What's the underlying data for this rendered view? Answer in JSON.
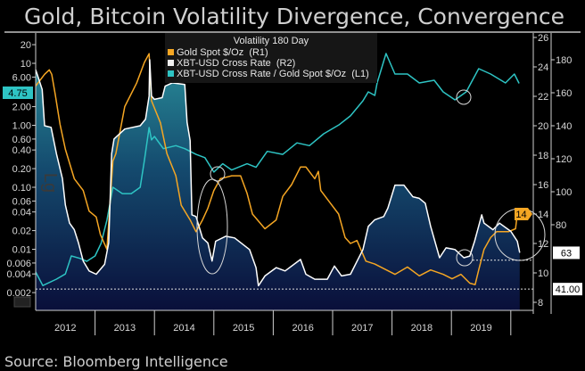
{
  "chart_data": {
    "type": "line",
    "title": "Gold, Bitcoin Volatility Divergence, Convergence",
    "source": "Source: Bloomberg Intelligence",
    "legend": {
      "title": "Volatility 180 Day",
      "placement": "top-center"
    },
    "x_ticks": [
      "2012",
      "2013",
      "2014",
      "2015",
      "2016",
      "2017",
      "2018",
      "2019"
    ],
    "xlim": [
      2012.0,
      2020.2
    ],
    "axes": {
      "L1": {
        "scale": "log",
        "ylim": [
          0.0015,
          30
        ],
        "ticks": [
          "20",
          "10",
          "6.00",
          "2.00",
          "1.00",
          "0.60",
          "0.40",
          "0.20",
          "0.10",
          "0.06",
          "0.04",
          "0.02",
          "0.01",
          "0.006",
          "0.004",
          "0.002"
        ],
        "watermark": "Lg"
      },
      "R1": {
        "scale": "linear",
        "ylim": [
          7.3,
          26.5
        ],
        "ticks": [
          "26",
          "24",
          "22",
          "20",
          "18",
          "16",
          "14",
          "12",
          "10",
          "8"
        ]
      },
      "R2": {
        "scale": "linear",
        "ylim": [
          28,
          192
        ],
        "ticks": [
          "180",
          "160",
          "140",
          "120",
          "100",
          "80"
        ]
      }
    },
    "grid": false,
    "series": [
      {
        "name": "Gold Spot $/Oz  (R1)",
        "axis": "R1",
        "color": "#f5a623",
        "last_label": "14",
        "x": [
          2012.0,
          2012.15,
          2012.23,
          2012.27,
          2012.33,
          2012.41,
          2012.5,
          2012.65,
          2012.8,
          2012.9,
          2013.02,
          2013.09,
          2013.2,
          2013.3,
          2013.35,
          2013.5,
          2013.7,
          2013.83,
          2013.91,
          2013.95,
          2014.1,
          2014.21,
          2014.36,
          2014.45,
          2014.6,
          2014.7,
          2014.81,
          2014.9,
          2015.0,
          2015.11,
          2015.3,
          2015.45,
          2015.56,
          2015.65,
          2015.86,
          2016.05,
          2016.16,
          2016.31,
          2016.46,
          2016.55,
          2016.7,
          2016.76,
          2016.8,
          2016.95,
          2017.1,
          2017.21,
          2017.3,
          2017.41,
          2017.56,
          2017.71,
          2018.05,
          2018.26,
          2018.46,
          2018.65,
          2018.86,
          2019.01,
          2019.16,
          2019.31,
          2019.4,
          2019.46,
          2019.55,
          2019.66,
          2019.76,
          2019.96,
          2020.08,
          2020.11,
          2020.14
        ],
        "values": [
          22.7,
          23.5,
          23.8,
          23.5,
          22.1,
          20.1,
          18.4,
          16.4,
          15.6,
          14.2,
          13.8,
          12.6,
          11.6,
          17.6,
          18.1,
          21.3,
          22.9,
          24.3,
          24.9,
          21.7,
          20.2,
          18.1,
          16.6,
          14.6,
          13.6,
          12.8,
          13.6,
          14.4,
          15.6,
          16.4,
          16.6,
          16.6,
          15.4,
          14.0,
          13.0,
          13.6,
          15.2,
          16.0,
          17.2,
          17.2,
          16.4,
          16.9,
          15.6,
          14.8,
          14.0,
          12.4,
          12.0,
          12.2,
          10.8,
          10.6,
          9.9,
          10.4,
          9.8,
          10.2,
          9.9,
          9.6,
          9.9,
          9.3,
          9.2,
          10.2,
          11.6,
          12.4,
          12.8,
          12.8,
          13.0,
          14.0,
          14.2
        ]
      },
      {
        "name": "XBT-USD Cross Rate  (R2)",
        "axis": "R2",
        "color": "#ffffff",
        "last_label": "63",
        "x": [
          2012.0,
          2012.11,
          2012.15,
          2012.26,
          2012.35,
          2012.45,
          2012.5,
          2012.57,
          2012.65,
          2012.72,
          2012.8,
          2012.9,
          2013.02,
          2013.16,
          2013.23,
          2013.28,
          2013.32,
          2013.5,
          2013.76,
          2013.85,
          2013.91,
          2013.92,
          2013.95,
          2014.0,
          2014.13,
          2014.18,
          2014.3,
          2014.51,
          2014.55,
          2014.6,
          2014.63,
          2014.7,
          2014.81,
          2014.9,
          2014.97,
          2015.03,
          2015.2,
          2015.35,
          2015.6,
          2015.71,
          2015.75,
          2015.86,
          2016.05,
          2016.2,
          2016.46,
          2016.55,
          2016.7,
          2016.91,
          2017.03,
          2017.15,
          2017.3,
          2017.51,
          2017.6,
          2017.71,
          2017.86,
          2017.93,
          2018.05,
          2018.2,
          2018.35,
          2018.46,
          2018.56,
          2018.65,
          2018.8,
          2018.91,
          2019.06,
          2019.21,
          2019.31,
          2019.39,
          2019.51,
          2019.55,
          2019.7,
          2019.81,
          2020.0,
          2020.11,
          2020.15
        ],
        "values": [
          174,
          162,
          140,
          139,
          123,
          108,
          92,
          81,
          77,
          69,
          58,
          52,
          50,
          56,
          69,
          123,
          132,
          138,
          140,
          144,
          158,
          180,
          158,
          156,
          157,
          164,
          166,
          165,
          142,
          131,
          86,
          85,
          72,
          69,
          58,
          70,
          73,
          72,
          65,
          54,
          43,
          49,
          54,
          52,
          59,
          50,
          47,
          47,
          55,
          49,
          50,
          65,
          79,
          83,
          85,
          90,
          104,
          104,
          97,
          96,
          93,
          79,
          60,
          66,
          65,
          60,
          61,
          70,
          86,
          81,
          77,
          81,
          76,
          70,
          63
        ]
      },
      {
        "name": "XBT-USD Cross Rate / Gold Spot $/Oz  (L1)",
        "axis": "L1",
        "color": "#2ec4c4",
        "last_label": "4.75",
        "x": [
          2012.0,
          2012.12,
          2012.35,
          2012.5,
          2012.6,
          2012.75,
          2012.86,
          2013.0,
          2013.1,
          2013.2,
          2013.3,
          2013.46,
          2013.61,
          2013.76,
          2013.83,
          2013.91,
          2013.95,
          2014.0,
          2014.15,
          2014.36,
          2014.51,
          2014.7,
          2014.85,
          2015.0,
          2015.15,
          2015.3,
          2015.56,
          2015.71,
          2015.9,
          2016.16,
          2016.4,
          2016.61,
          2016.85,
          2017.11,
          2017.3,
          2017.51,
          2017.6,
          2017.71,
          2017.75,
          2017.9,
          2018.05,
          2018.26,
          2018.46,
          2018.71,
          2018.86,
          2019.06,
          2019.25,
          2019.46,
          2019.66,
          2019.91,
          2020.06,
          2020.14
        ],
        "values": [
          0.0043,
          0.0026,
          0.0033,
          0.004,
          0.0078,
          0.0071,
          0.0064,
          0.0078,
          0.0124,
          0.0294,
          0.1,
          0.079,
          0.079,
          0.1,
          0.27,
          0.92,
          0.58,
          0.66,
          0.42,
          0.47,
          0.42,
          0.34,
          0.3,
          0.176,
          0.24,
          0.19,
          0.24,
          0.21,
          0.38,
          0.34,
          0.52,
          0.47,
          0.73,
          1.02,
          1.42,
          2.49,
          3.46,
          3.03,
          4.82,
          14.4,
          6.72,
          6.72,
          4.82,
          5.33,
          3.46,
          2.57,
          3.46,
          8.2,
          6.72,
          4.82,
          6.72,
          4.75
        ]
      }
    ],
    "reference_labels": {
      "r2_upper": "63",
      "r2_lower": "41.00"
    }
  }
}
